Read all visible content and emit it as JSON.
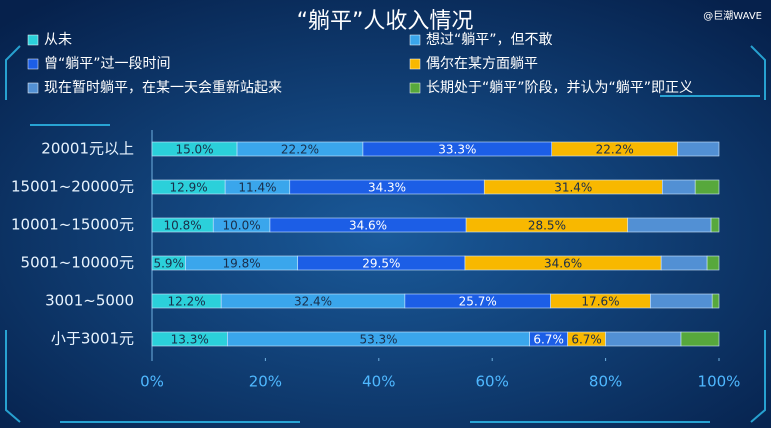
{
  "chart_data": {
    "type": "stacked-bar-horizontal",
    "title": "“躺平”人收入情况",
    "watermark": "@巨潮WAVE",
    "categories": [
      "20001元以上",
      "15001~20000元",
      "10001~15000元",
      "5001~10000元",
      "3001~5000",
      "小于3001元"
    ],
    "series": [
      {
        "name": "从未",
        "color": "#2bd0da",
        "values": [
          15.0,
          12.9,
          10.8,
          5.9,
          12.2,
          13.3
        ],
        "value_labels": [
          "15.0%",
          "12.9%",
          "10.8%",
          "5.9%",
          "12.2%",
          "13.3%"
        ]
      },
      {
        "name": "想过“躺平”，但不敢",
        "color": "#3aa6ec",
        "values": [
          22.2,
          11.4,
          10.0,
          19.8,
          32.4,
          53.3
        ],
        "value_labels": [
          "22.2%",
          "11.4%",
          "10.0%",
          "19.8%",
          "32.4%",
          "53.3%"
        ]
      },
      {
        "name": "曾“躺平”过一段时间",
        "color": "#1c5ee6",
        "values": [
          33.3,
          34.3,
          34.6,
          29.5,
          25.7,
          6.7
        ],
        "value_labels": [
          "33.3%",
          "34.3%",
          "34.6%",
          "29.5%",
          "25.7%",
          "6.7%"
        ]
      },
      {
        "name": "偶尔在某方面躺平",
        "color": "#f8b800",
        "values": [
          22.2,
          31.4,
          28.5,
          34.6,
          17.6,
          6.7
        ],
        "value_labels": [
          "22.2%",
          "31.4%",
          "28.5%",
          "34.6%",
          "17.6%",
          "6.7%"
        ]
      },
      {
        "name": "现在暂时躺平，在某一天会重新站起来",
        "color": "#5290d4",
        "values": [
          7.3,
          5.8,
          14.7,
          8.1,
          10.9,
          13.3
        ]
      },
      {
        "name": "长期处于“躺平”阶段，并认为“躺平”即正义",
        "color": "#57a83c",
        "values": [
          0,
          4.2,
          1.4,
          2.1,
          1.2,
          6.7
        ]
      }
    ],
    "xlim": [
      0,
      100
    ],
    "xticks": [
      {
        "value": 0,
        "label": "0%"
      },
      {
        "value": 20,
        "label": "20%"
      },
      {
        "value": 40,
        "label": "40%"
      },
      {
        "value": 60,
        "label": "60%"
      },
      {
        "value": 80,
        "label": "80%"
      },
      {
        "value": 100,
        "label": "100%"
      }
    ]
  }
}
